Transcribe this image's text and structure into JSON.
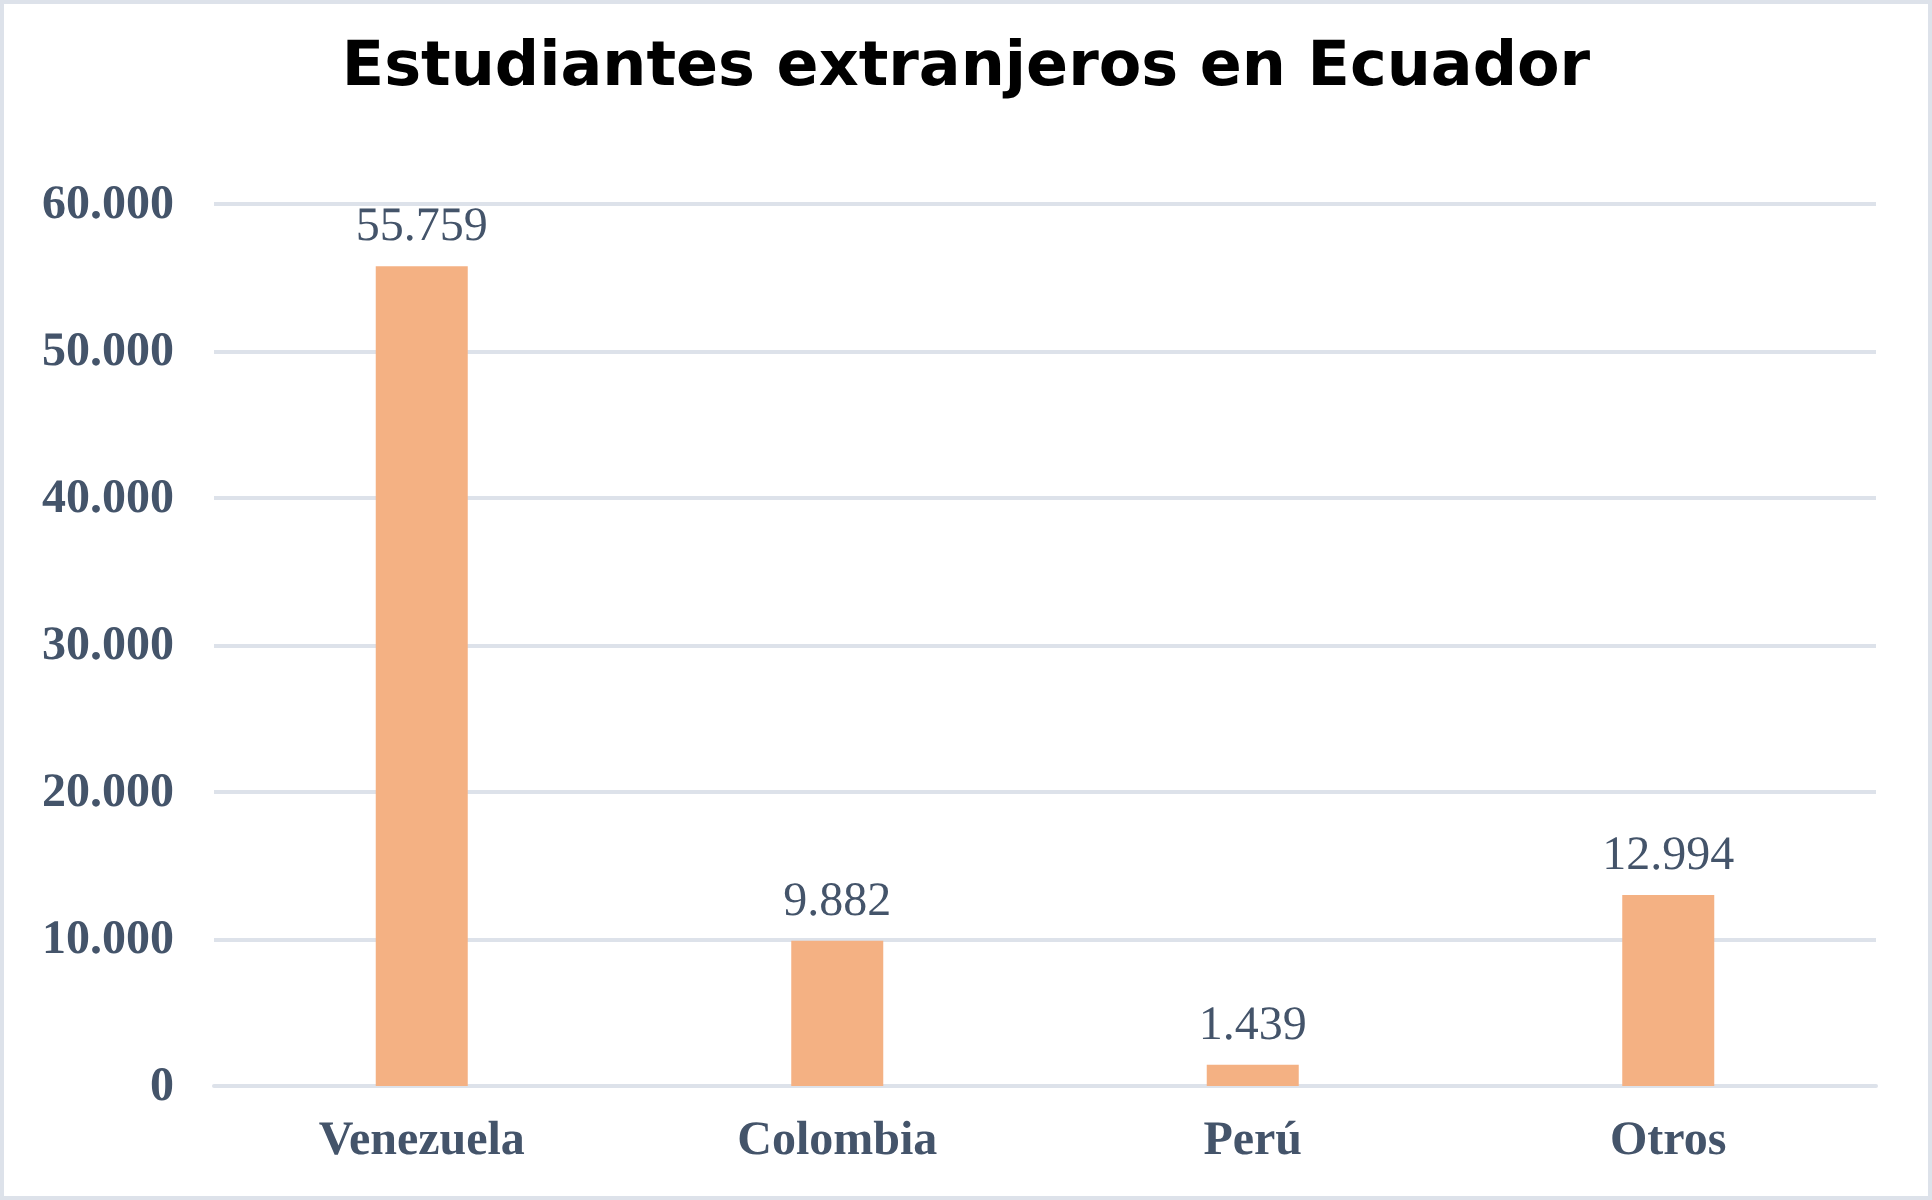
{
  "chart_data": {
    "type": "bar",
    "title": "Estudiantes extranjeros en Ecuador",
    "categories": [
      "Venezuela",
      "Colombia",
      "Perú",
      "Otros"
    ],
    "values": [
      55759,
      9882,
      1439,
      12994
    ],
    "value_labels": [
      "55.759",
      "9.882",
      "1.439",
      "12.994"
    ],
    "color": "#f4b183",
    "ylim": [
      0,
      60000
    ],
    "yticks": [
      {
        "value": 0,
        "label": "0"
      },
      {
        "value": 10000,
        "label": "10.000"
      },
      {
        "value": 20000,
        "label": "20.000"
      },
      {
        "value": 30000,
        "label": "30.000"
      },
      {
        "value": 40000,
        "label": "40.000"
      },
      {
        "value": 50000,
        "label": "50.000"
      },
      {
        "value": 60000,
        "label": "60.000"
      }
    ],
    "grid": "y"
  }
}
